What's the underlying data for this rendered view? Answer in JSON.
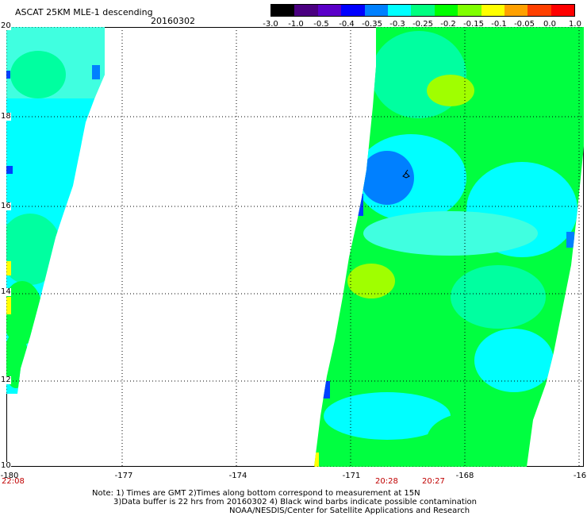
{
  "header": {
    "title": "ASCAT 25KM MLE-1 descending",
    "date": "20160302"
  },
  "colorbar": {
    "labels": [
      "-3.0",
      "-1.0",
      "-0.5",
      "-0.4",
      "-0.35",
      "-0.3",
      "-0.25",
      "-0.2",
      "-0.15",
      "-0.1",
      "-0.05",
      "0.0",
      "1.0"
    ],
    "colors": [
      "#000000",
      "#4a0080",
      "#5a00c8",
      "#0000ff",
      "#0080ff",
      "#00ffff",
      "#00ff80",
      "#00ff00",
      "#80ff00",
      "#ffff00",
      "#ffa000",
      "#ff4000",
      "#ff0000"
    ]
  },
  "map": {
    "lat_labels": [
      "20",
      "18",
      "16",
      "14",
      "12",
      "10"
    ],
    "lon_labels": [
      "-180",
      "-177",
      "-174",
      "-171",
      "-168",
      "-16"
    ],
    "swath_colors": {
      "cyan": "#00ffff",
      "light_cyan": "#40ffe0",
      "aqua_green": "#00ffa0",
      "green": "#00ff40",
      "blue": "#0080ff",
      "deep_blue": "#0040ff",
      "yellow_green": "#a0ff00",
      "yellow": "#ffff00"
    },
    "symbol": "barb-mark"
  },
  "times": {
    "left": "22:08",
    "mid1": "20:28",
    "mid2": "20:27"
  },
  "notes": {
    "line1": "Note: 1) Times are GMT 2)Times along bottom correspond to measurement at 15N",
    "line2": "3)Data buffer is 22 hrs from 20160302 4) Black wind barbs indicate possible contamination",
    "line3": "NOAA/NESDIS/Center for Satellite Applications and Research"
  }
}
